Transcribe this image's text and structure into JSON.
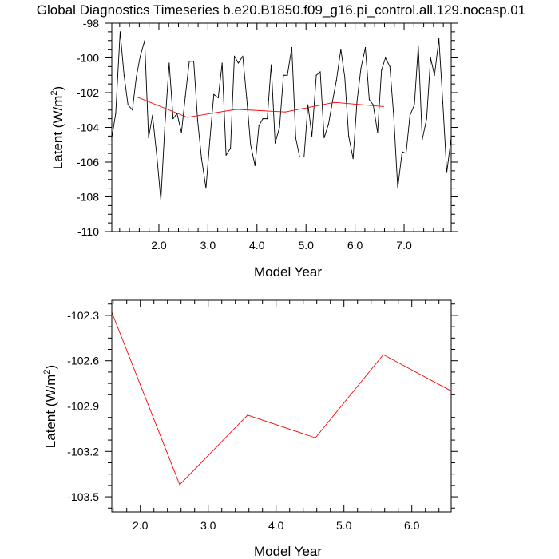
{
  "page_title": "Global Diagnostics Timeseries b.e20.B1850.f09_g16.pi_control.all.129.nocasp.01",
  "colors": {
    "monthly_line": "#000000",
    "annual_line": "#ff0000",
    "axis": "#000000",
    "background": "#ffffff"
  },
  "chart_data": [
    {
      "type": "line",
      "title": "Global Diagnostics Timeseries b.e20.B1850.f09_g16.pi_control.all.129.nocasp.01",
      "xlabel": "Model Year",
      "ylabel_main": "Latent (W/m",
      "ylabel_sup": "2",
      "ylabel_close": ")",
      "xlim": [
        1.04,
        7.96
      ],
      "ylim": [
        -110,
        -98
      ],
      "xticks": [
        2.0,
        3.0,
        4.0,
        5.0,
        6.0,
        7.0
      ],
      "xtick_labels": [
        "2.0",
        "3.0",
        "4.0",
        "5.0",
        "6.0",
        "7.0"
      ],
      "yticks": [
        -110,
        -108,
        -106,
        -104,
        -102,
        -100,
        -98
      ],
      "ytick_labels": [
        "-110",
        "-108",
        "-106",
        "-104",
        "-102",
        "-100",
        "-98"
      ],
      "grid": false,
      "series": [
        {
          "color": "#000000",
          "x": [
            1.04,
            1.12,
            1.21,
            1.29,
            1.37,
            1.46,
            1.54,
            1.62,
            1.71,
            1.79,
            1.87,
            1.96,
            2.04,
            2.12,
            2.21,
            2.29,
            2.37,
            2.46,
            2.54,
            2.62,
            2.71,
            2.79,
            2.87,
            2.96,
            3.04,
            3.12,
            3.21,
            3.29,
            3.37,
            3.46,
            3.54,
            3.62,
            3.71,
            3.79,
            3.87,
            3.96,
            4.04,
            4.12,
            4.21,
            4.29,
            4.37,
            4.46,
            4.54,
            4.62,
            4.71,
            4.79,
            4.87,
            4.96,
            5.04,
            5.12,
            5.21,
            5.29,
            5.37,
            5.46,
            5.54,
            5.62,
            5.71,
            5.79,
            5.87,
            5.96,
            6.04,
            6.12,
            6.21,
            6.29,
            6.37,
            6.46,
            6.54,
            6.62,
            6.71,
            6.79,
            6.87,
            6.96,
            7.04,
            7.12,
            7.21,
            7.29,
            7.37,
            7.46,
            7.54,
            7.62,
            7.71,
            7.79,
            7.87,
            7.96
          ],
          "values": [
            -104.6,
            -103.2,
            -98.5,
            -101.0,
            -102.7,
            -103.0,
            -101.1,
            -99.9,
            -99.0,
            -104.6,
            -103.3,
            -105.7,
            -108.2,
            -104.0,
            -100.3,
            -103.5,
            -103.2,
            -104.3,
            -102.2,
            -100.2,
            -100.2,
            -103.6,
            -105.8,
            -107.5,
            -104.7,
            -102.1,
            -102.3,
            -100.3,
            -105.6,
            -105.2,
            -99.9,
            -100.3,
            -99.9,
            -102.3,
            -105.0,
            -106.2,
            -103.9,
            -103.5,
            -103.5,
            -100.4,
            -104.9,
            -104.0,
            -101.0,
            -101.0,
            -99.4,
            -104.6,
            -105.7,
            -105.7,
            -102.7,
            -104.5,
            -101.0,
            -100.8,
            -104.6,
            -103.8,
            -102.5,
            -101.3,
            -99.5,
            -101.1,
            -104.5,
            -105.8,
            -102.5,
            -100.6,
            -99.4,
            -102.4,
            -102.7,
            -104.3,
            -100.7,
            -100.0,
            -100.5,
            -103.4,
            -107.5,
            -105.4,
            -105.5,
            -103.3,
            -102.7,
            -99.3,
            -104.7,
            -103.5,
            -100.0,
            -101.0,
            -98.9,
            -102.6,
            -106.6,
            -104.6
          ]
        },
        {
          "color": "#ff0000",
          "x": [
            1.58,
            2.58,
            3.58,
            4.58,
            5.58,
            6.58
          ],
          "values": [
            -102.28,
            -103.42,
            -102.96,
            -103.11,
            -102.56,
            -102.8
          ]
        }
      ]
    },
    {
      "type": "line",
      "xlabel": "Model Year",
      "ylabel_main": "Latent (W/m",
      "ylabel_sup": "2",
      "ylabel_close": ")",
      "xlim": [
        1.58,
        6.58
      ],
      "ylim": [
        -103.6,
        -102.2
      ],
      "xticks": [
        2.0,
        3.0,
        4.0,
        5.0,
        6.0
      ],
      "xtick_labels": [
        "2.0",
        "3.0",
        "4.0",
        "5.0",
        "6.0"
      ],
      "yticks": [
        -103.5,
        -103.2,
        -102.9,
        -102.6,
        -102.3
      ],
      "ytick_labels": [
        "-103.5",
        "-103.2",
        "-102.9",
        "-102.6",
        "-102.3"
      ],
      "grid": false,
      "series": [
        {
          "color": "#ff0000",
          "x": [
            1.58,
            2.58,
            3.58,
            4.58,
            5.58,
            6.58
          ],
          "values": [
            -102.28,
            -103.42,
            -102.96,
            -103.11,
            -102.56,
            -102.8
          ]
        }
      ]
    }
  ]
}
